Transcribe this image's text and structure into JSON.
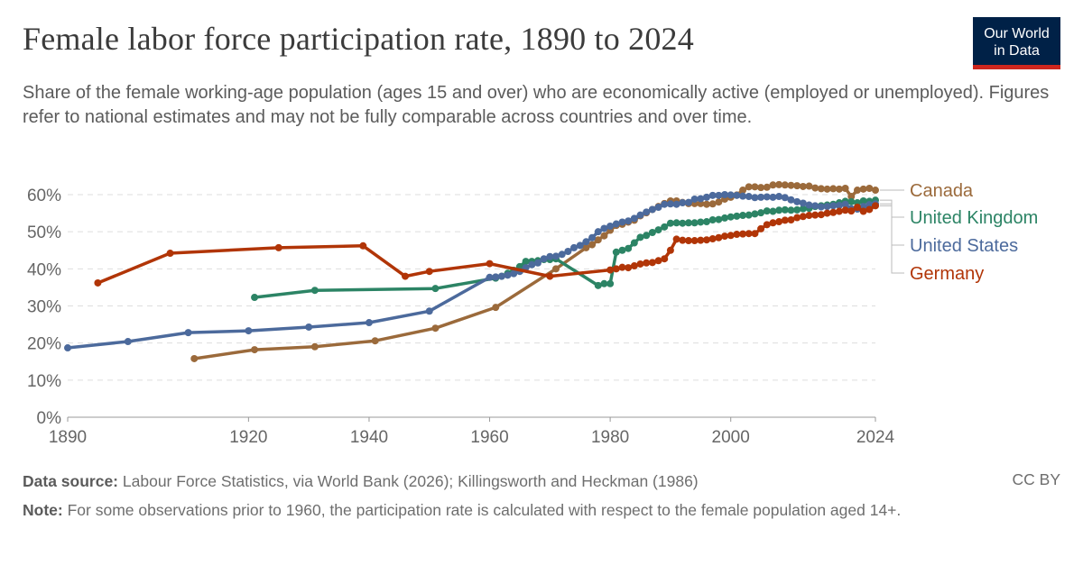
{
  "title": "Female labor force participation rate, 1890 to 2024",
  "subtitle": "Share of the female working-age population (ages 15 and over) who are economically active (employed or unemployed). Figures refer to national estimates and may not be fully comparable across countries and over time.",
  "logo": {
    "line1": "Our World",
    "line2": "in Data",
    "bg": "#002147",
    "accent": "#ce261e"
  },
  "footer": {
    "source_label": "Data source:",
    "source": "Labour Force Statistics, via World Bank (2026); Killingsworth and Heckman (1986)",
    "license": "CC BY",
    "note_label": "Note:",
    "note": "For some observations prior to 1960, the participation rate is calculated with respect to the female population aged 14+."
  },
  "chart_data": {
    "type": "line",
    "title": "Female labor force participation rate, 1890 to 2024",
    "xlim": [
      1890,
      2024
    ],
    "ylim": [
      0,
      60
    ],
    "x_ticks": [
      "1890",
      "1920",
      "1940",
      "1960",
      "1980",
      "2000",
      "2024"
    ],
    "y_ticks": [
      "0%",
      "10%",
      "20%",
      "30%",
      "40%",
      "50%",
      "60%"
    ],
    "grid": "horizontal dashed",
    "legend": "right (line-end labels)",
    "series": [
      {
        "name": "Canada",
        "color": "#9b6a3b",
        "points": [
          [
            1911,
            15.8
          ],
          [
            1921,
            18.2
          ],
          [
            1931,
            19.0
          ],
          [
            1941,
            20.6
          ],
          [
            1951,
            24.0
          ],
          [
            1961,
            29.6
          ],
          [
            1971,
            40.0
          ],
          [
            1976,
            45.7
          ],
          [
            1977,
            46.5
          ],
          [
            1978,
            47.8
          ],
          [
            1979,
            48.9
          ],
          [
            1980,
            50.4
          ],
          [
            1981,
            51.7
          ],
          [
            1982,
            52.0
          ],
          [
            1983,
            52.6
          ],
          [
            1984,
            53.1
          ],
          [
            1985,
            54.3
          ],
          [
            1986,
            55.1
          ],
          [
            1987,
            56.0
          ],
          [
            1988,
            56.8
          ],
          [
            1989,
            57.6
          ],
          [
            1990,
            58.3
          ],
          [
            1991,
            58.3
          ],
          [
            1992,
            57.9
          ],
          [
            1993,
            57.6
          ],
          [
            1994,
            57.6
          ],
          [
            1995,
            57.6
          ],
          [
            1996,
            57.4
          ],
          [
            1997,
            57.5
          ],
          [
            1998,
            58.0
          ],
          [
            1999,
            58.8
          ],
          [
            2000,
            59.3
          ],
          [
            2001,
            59.9
          ],
          [
            2002,
            61.2
          ],
          [
            2003,
            62.1
          ],
          [
            2004,
            62.1
          ],
          [
            2005,
            61.9
          ],
          [
            2006,
            62.0
          ],
          [
            2007,
            62.6
          ],
          [
            2008,
            62.7
          ],
          [
            2009,
            62.6
          ],
          [
            2010,
            62.5
          ],
          [
            2011,
            62.4
          ],
          [
            2012,
            62.2
          ],
          [
            2013,
            62.3
          ],
          [
            2014,
            61.8
          ],
          [
            2015,
            61.6
          ],
          [
            2016,
            61.5
          ],
          [
            2017,
            61.6
          ],
          [
            2018,
            61.5
          ],
          [
            2019,
            61.7
          ],
          [
            2020,
            59.5
          ],
          [
            2021,
            61.2
          ],
          [
            2022,
            61.5
          ],
          [
            2023,
            61.7
          ],
          [
            2024,
            61.2
          ]
        ]
      },
      {
        "name": "United Kingdom",
        "color": "#2c8465",
        "points": [
          [
            1921,
            32.3
          ],
          [
            1931,
            34.2
          ],
          [
            1951,
            34.7
          ],
          [
            1961,
            37.5
          ],
          [
            1962,
            38.0
          ],
          [
            1963,
            38.8
          ],
          [
            1964,
            39.6
          ],
          [
            1965,
            40.6
          ],
          [
            1966,
            42.0
          ],
          [
            1967,
            42.0
          ],
          [
            1968,
            42.2
          ],
          [
            1969,
            42.5
          ],
          [
            1970,
            42.5
          ],
          [
            1971,
            42.7
          ],
          [
            1978,
            35.5
          ],
          [
            1979,
            36.0
          ],
          [
            1980,
            36.0
          ],
          [
            1981,
            44.5
          ],
          [
            1982,
            45.0
          ],
          [
            1983,
            45.5
          ],
          [
            1984,
            47.0
          ],
          [
            1985,
            48.5
          ],
          [
            1986,
            49.0
          ],
          [
            1987,
            49.8
          ],
          [
            1988,
            50.5
          ],
          [
            1989,
            51.3
          ],
          [
            1990,
            52.3
          ],
          [
            1991,
            52.4
          ],
          [
            1992,
            52.3
          ],
          [
            1993,
            52.4
          ],
          [
            1994,
            52.4
          ],
          [
            1995,
            52.6
          ],
          [
            1996,
            52.7
          ],
          [
            1997,
            53.2
          ],
          [
            1998,
            53.3
          ],
          [
            1999,
            53.7
          ],
          [
            2000,
            54.0
          ],
          [
            2001,
            54.2
          ],
          [
            2002,
            54.4
          ],
          [
            2003,
            54.5
          ],
          [
            2004,
            54.8
          ],
          [
            2005,
            55.1
          ],
          [
            2006,
            55.6
          ],
          [
            2007,
            55.5
          ],
          [
            2008,
            55.8
          ],
          [
            2009,
            55.9
          ],
          [
            2010,
            55.8
          ],
          [
            2011,
            55.9
          ],
          [
            2012,
            56.2
          ],
          [
            2013,
            56.3
          ],
          [
            2014,
            56.8
          ],
          [
            2015,
            57.0
          ],
          [
            2016,
            57.2
          ],
          [
            2017,
            57.4
          ],
          [
            2018,
            57.8
          ],
          [
            2019,
            58.2
          ],
          [
            2020,
            58.1
          ],
          [
            2021,
            57.8
          ],
          [
            2022,
            58.3
          ],
          [
            2023,
            58.2
          ],
          [
            2024,
            58.5
          ]
        ]
      },
      {
        "name": "United States",
        "color": "#4c6a9c",
        "points": [
          [
            1890,
            18.7
          ],
          [
            1900,
            20.4
          ],
          [
            1910,
            22.8
          ],
          [
            1920,
            23.3
          ],
          [
            1930,
            24.3
          ],
          [
            1940,
            25.5
          ],
          [
            1950,
            28.6
          ],
          [
            1960,
            37.7
          ],
          [
            1961,
            37.8
          ],
          [
            1962,
            38.0
          ],
          [
            1963,
            38.3
          ],
          [
            1964,
            38.7
          ],
          [
            1965,
            39.3
          ],
          [
            1966,
            40.3
          ],
          [
            1967,
            41.1
          ],
          [
            1968,
            41.6
          ],
          [
            1969,
            42.7
          ],
          [
            1970,
            43.3
          ],
          [
            1971,
            43.4
          ],
          [
            1972,
            43.9
          ],
          [
            1973,
            44.7
          ],
          [
            1974,
            45.7
          ],
          [
            1975,
            46.3
          ],
          [
            1976,
            47.3
          ],
          [
            1977,
            48.4
          ],
          [
            1978,
            50.0
          ],
          [
            1979,
            50.9
          ],
          [
            1980,
            51.5
          ],
          [
            1981,
            52.1
          ],
          [
            1982,
            52.6
          ],
          [
            1983,
            52.9
          ],
          [
            1984,
            53.6
          ],
          [
            1985,
            54.5
          ],
          [
            1986,
            55.3
          ],
          [
            1987,
            56.0
          ],
          [
            1988,
            56.6
          ],
          [
            1989,
            57.4
          ],
          [
            1990,
            57.5
          ],
          [
            1991,
            57.4
          ],
          [
            1992,
            57.8
          ],
          [
            1993,
            57.9
          ],
          [
            1994,
            58.8
          ],
          [
            1995,
            58.9
          ],
          [
            1996,
            59.3
          ],
          [
            1997,
            59.8
          ],
          [
            1998,
            59.8
          ],
          [
            1999,
            60.0
          ],
          [
            2000,
            59.9
          ],
          [
            2001,
            59.8
          ],
          [
            2002,
            59.6
          ],
          [
            2003,
            59.5
          ],
          [
            2004,
            59.2
          ],
          [
            2005,
            59.3
          ],
          [
            2006,
            59.4
          ],
          [
            2007,
            59.3
          ],
          [
            2008,
            59.5
          ],
          [
            2009,
            59.2
          ],
          [
            2010,
            58.6
          ],
          [
            2011,
            58.1
          ],
          [
            2012,
            57.7
          ],
          [
            2013,
            57.2
          ],
          [
            2014,
            57.0
          ],
          [
            2015,
            56.7
          ],
          [
            2016,
            56.8
          ],
          [
            2017,
            57.0
          ],
          [
            2018,
            57.1
          ],
          [
            2019,
            57.4
          ],
          [
            2020,
            56.2
          ],
          [
            2021,
            56.1
          ],
          [
            2022,
            56.8
          ],
          [
            2023,
            57.3
          ],
          [
            2024,
            57.5
          ]
        ]
      },
      {
        "name": "Germany",
        "color": "#b13507",
        "points": [
          [
            1895,
            36.2
          ],
          [
            1907,
            44.2
          ],
          [
            1925,
            45.7
          ],
          [
            1939,
            46.2
          ],
          [
            1946,
            38.0
          ],
          [
            1950,
            39.3
          ],
          [
            1960,
            41.4
          ],
          [
            1970,
            38.0
          ],
          [
            1980,
            39.7
          ],
          [
            1981,
            40.0
          ],
          [
            1982,
            40.4
          ],
          [
            1983,
            40.3
          ],
          [
            1984,
            40.8
          ],
          [
            1985,
            41.3
          ],
          [
            1986,
            41.6
          ],
          [
            1987,
            41.7
          ],
          [
            1988,
            42.2
          ],
          [
            1989,
            42.7
          ],
          [
            1990,
            45.0
          ],
          [
            1991,
            48.0
          ],
          [
            1992,
            47.7
          ],
          [
            1993,
            47.6
          ],
          [
            1994,
            47.6
          ],
          [
            1995,
            47.7
          ],
          [
            1996,
            47.8
          ],
          [
            1997,
            48.1
          ],
          [
            1998,
            48.4
          ],
          [
            1999,
            48.8
          ],
          [
            2000,
            49.0
          ],
          [
            2001,
            49.3
          ],
          [
            2002,
            49.4
          ],
          [
            2003,
            49.5
          ],
          [
            2004,
            49.5
          ],
          [
            2005,
            50.8
          ],
          [
            2006,
            51.9
          ],
          [
            2007,
            52.4
          ],
          [
            2008,
            52.7
          ],
          [
            2009,
            53.1
          ],
          [
            2010,
            53.2
          ],
          [
            2011,
            53.8
          ],
          [
            2012,
            54.1
          ],
          [
            2013,
            54.4
          ],
          [
            2014,
            54.5
          ],
          [
            2015,
            54.6
          ],
          [
            2016,
            55.0
          ],
          [
            2017,
            55.2
          ],
          [
            2018,
            55.5
          ],
          [
            2019,
            55.8
          ],
          [
            2020,
            55.6
          ],
          [
            2021,
            56.6
          ],
          [
            2022,
            55.5
          ],
          [
            2023,
            56.0
          ],
          [
            2024,
            57.0
          ]
        ]
      }
    ]
  }
}
